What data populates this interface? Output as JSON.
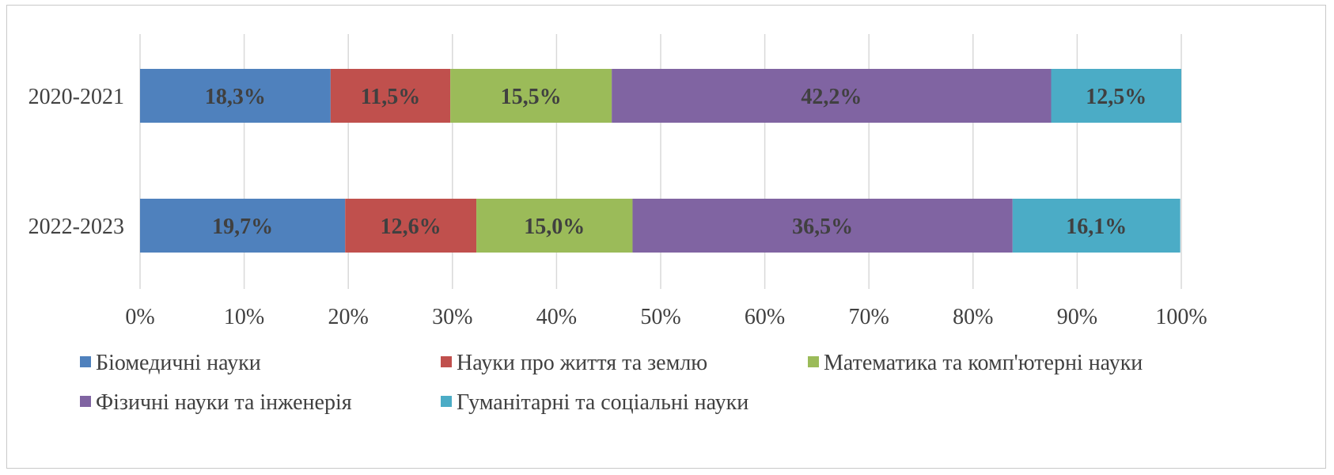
{
  "chart_data": {
    "type": "bar",
    "orientation": "horizontal",
    "stacked": true,
    "percent_stacked": true,
    "categories": [
      "2020-2021",
      "2022-2023"
    ],
    "series": [
      {
        "name": "Біомедичні науки",
        "color": "#4f81bd",
        "values": [
          18.3,
          19.7
        ],
        "labels": [
          "18,3%",
          "19,7%"
        ]
      },
      {
        "name": "Науки про життя та землю",
        "color": "#c0504d",
        "values": [
          11.5,
          12.6
        ],
        "labels": [
          "11,5%",
          "12,6%"
        ]
      },
      {
        "name": "Математика та комп'ютерні науки",
        "color": "#9bbb59",
        "values": [
          15.5,
          15.0
        ],
        "labels": [
          "15,5%",
          "15,0%"
        ]
      },
      {
        "name": "Фізичні науки та інженерія",
        "color": "#8064a2",
        "values": [
          42.2,
          36.5
        ],
        "labels": [
          "42,2%",
          "36,5%"
        ]
      },
      {
        "name": "Гуманітарні та соціальні науки",
        "color": "#4bacc6",
        "values": [
          12.5,
          16.1
        ],
        "labels": [
          "12,5%",
          "16,1%"
        ]
      }
    ],
    "xlim": [
      0,
      100
    ],
    "xticks": [
      "0%",
      "10%",
      "20%",
      "30%",
      "40%",
      "50%",
      "60%",
      "70%",
      "80%",
      "90%",
      "100%"
    ],
    "grid": "vertical",
    "legend_position": "bottom",
    "title": "",
    "xlabel": "",
    "ylabel": ""
  }
}
